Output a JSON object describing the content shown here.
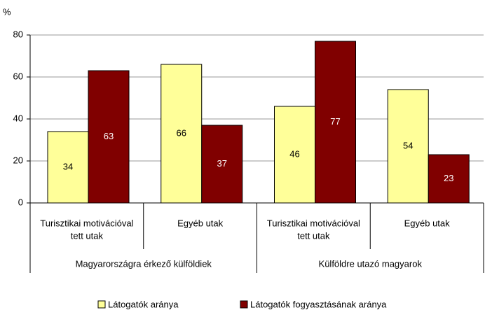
{
  "chart_data": {
    "type": "bar",
    "y_label": "%",
    "categories": [
      [
        "Turisztikai motivációval",
        "tett utak"
      ],
      [
        "Egyéb utak"
      ],
      [
        "Turisztikai motivációval",
        "tett utak"
      ],
      [
        "Egyéb utak"
      ]
    ],
    "groups": [
      "Magyarországra érkező külföldiek",
      "Külföldre utazó magyarok"
    ],
    "series": [
      {
        "name": "Látogatók aránya",
        "color": "#ffff99",
        "values": [
          34,
          66,
          46,
          54
        ]
      },
      {
        "name": "Látogatók fogyasztásának aránya",
        "color": "#800000",
        "values": [
          63,
          37,
          77,
          23
        ]
      }
    ],
    "ylim": [
      0,
      80
    ],
    "yticks": [
      0,
      20,
      40,
      60,
      80
    ],
    "grid": true,
    "legend": "bottom"
  }
}
